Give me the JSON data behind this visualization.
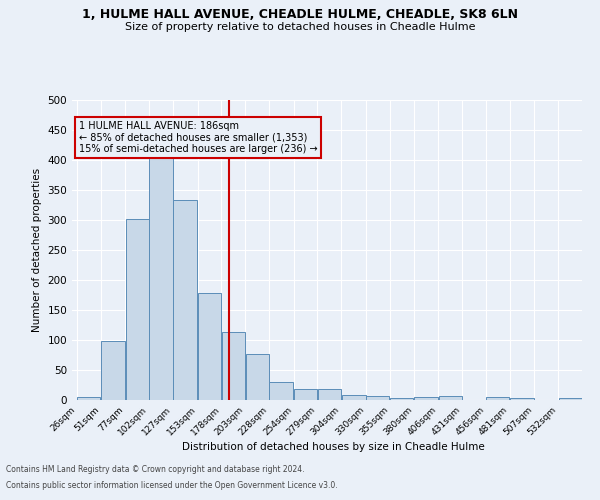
{
  "title1": "1, HULME HALL AVENUE, CHEADLE HULME, CHEADLE, SK8 6LN",
  "title2": "Size of property relative to detached houses in Cheadle Hulme",
  "xlabel": "Distribution of detached houses by size in Cheadle Hulme",
  "ylabel": "Number of detached properties",
  "footnote1": "Contains HM Land Registry data © Crown copyright and database right 2024.",
  "footnote2": "Contains public sector information licensed under the Open Government Licence v3.0.",
  "bin_labels": [
    "26sqm",
    "51sqm",
    "77sqm",
    "102sqm",
    "127sqm",
    "153sqm",
    "178sqm",
    "203sqm",
    "228sqm",
    "254sqm",
    "279sqm",
    "304sqm",
    "330sqm",
    "355sqm",
    "380sqm",
    "406sqm",
    "431sqm",
    "456sqm",
    "481sqm",
    "507sqm",
    "532sqm"
  ],
  "bar_values": [
    5,
    99,
    302,
    412,
    333,
    178,
    113,
    76,
    30,
    18,
    18,
    9,
    6,
    4,
    5,
    6,
    0,
    5,
    4,
    0,
    4
  ],
  "bar_color": "#c8d8e8",
  "bar_edge_color": "#5b8db8",
  "vline_x": 186,
  "vline_color": "#cc0000",
  "annotation_title": "1 HULME HALL AVENUE: 186sqm",
  "annotation_line1": "← 85% of detached houses are smaller (1,353)",
  "annotation_line2": "15% of semi-detached houses are larger (236) →",
  "annotation_box_color": "#cc0000",
  "bin_edges": [
    26,
    51,
    77,
    102,
    127,
    153,
    178,
    203,
    228,
    254,
    279,
    304,
    330,
    355,
    380,
    406,
    431,
    456,
    481,
    507,
    532,
    557
  ],
  "ylim": [
    0,
    500
  ],
  "yticks": [
    0,
    50,
    100,
    150,
    200,
    250,
    300,
    350,
    400,
    450,
    500
  ],
  "bg_color": "#eaf0f8",
  "grid_color": "#ffffff"
}
